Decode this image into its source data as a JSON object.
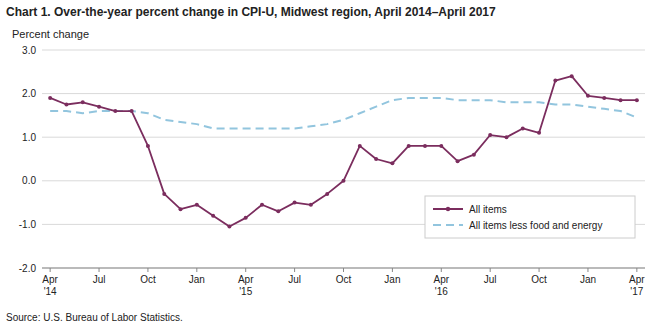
{
  "chart_data": {
    "type": "line",
    "title": "Chart 1. Over-the-year percent change in CPI-U, Midwest region, April 2014–April 2017",
    "y_label": "Percent change",
    "source": "Source: U.S. Bureau of Labor Statistics.",
    "categories": [
      "Apr\n'14",
      null,
      null,
      "Jul",
      null,
      null,
      "Oct",
      null,
      null,
      "Jan",
      null,
      null,
      "Apr\n'15",
      null,
      null,
      "Jul",
      null,
      null,
      "Oct",
      null,
      null,
      "Jan",
      null,
      null,
      "Apr\n'16",
      null,
      null,
      "Jul",
      null,
      null,
      "Oct",
      null,
      null,
      "Jan",
      null,
      null,
      "Apr\n'17"
    ],
    "series": [
      {
        "name": "All items",
        "color": "#7B2D5E",
        "marker": "circle",
        "line_style": "solid",
        "values": [
          1.9,
          1.75,
          1.8,
          1.7,
          1.6,
          1.6,
          0.8,
          -0.3,
          -0.65,
          -0.55,
          -0.8,
          -1.05,
          -0.85,
          -0.55,
          -0.7,
          -0.5,
          -0.55,
          -0.3,
          0.0,
          0.8,
          0.5,
          0.4,
          0.8,
          0.8,
          0.8,
          0.45,
          0.6,
          1.05,
          1.0,
          1.2,
          1.1,
          2.3,
          2.4,
          1.95,
          1.9,
          1.85,
          1.85
        ]
      },
      {
        "name": "All items less food and energy",
        "color": "#92C5DE",
        "line_style": "dashed",
        "values": [
          1.6,
          1.6,
          1.55,
          1.6,
          1.6,
          1.6,
          1.55,
          1.4,
          1.35,
          1.3,
          1.2,
          1.2,
          1.2,
          1.2,
          1.2,
          1.2,
          1.25,
          1.3,
          1.4,
          1.55,
          1.7,
          1.85,
          1.9,
          1.9,
          1.9,
          1.85,
          1.85,
          1.85,
          1.8,
          1.8,
          1.8,
          1.75,
          1.75,
          1.7,
          1.65,
          1.6,
          1.45
        ]
      }
    ],
    "ylim": [
      -2.0,
      3.0
    ],
    "yticks": [
      {
        "value": -2.0,
        "label": "-2.0"
      },
      {
        "value": -1.0,
        "label": "-1.0"
      },
      {
        "value": 0.0,
        "label": "0.0"
      },
      {
        "value": 1.0,
        "label": "1.0"
      },
      {
        "value": 2.0,
        "label": "2.0"
      },
      {
        "value": 3.0,
        "label": "3.0"
      }
    ],
    "grid": true,
    "legend": "lower right"
  }
}
